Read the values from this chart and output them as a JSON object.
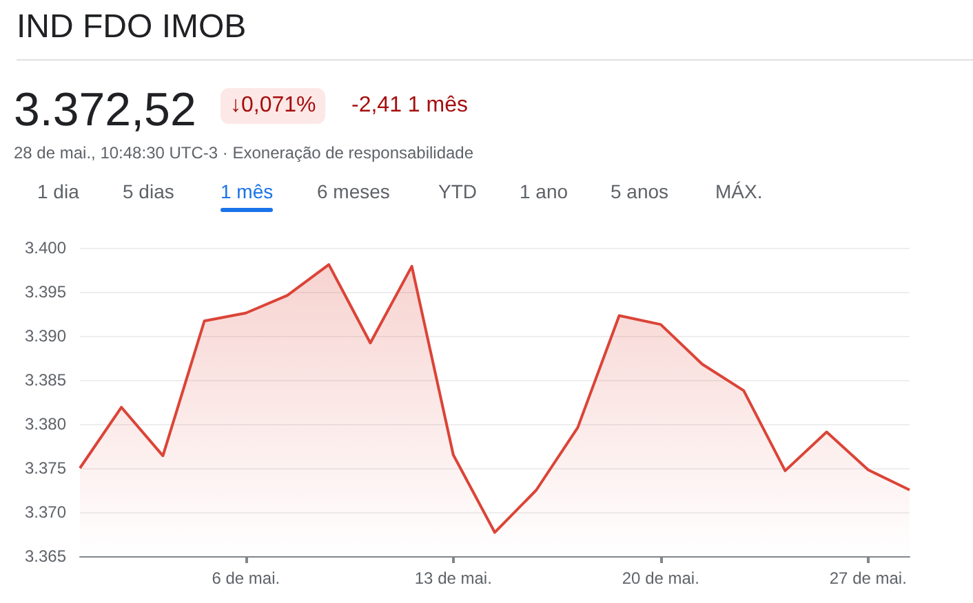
{
  "chart_data": {
    "type": "area",
    "title": "IND FDO IMOB",
    "annotations": [
      "3.372,52",
      "↓0,071%",
      "-2,41 1 mês",
      "28 de mai., 10:48:30 UTC-3 · Exoneração de responsabilidade",
      "1 dia",
      "5 dias",
      "1 mês",
      "6 meses",
      "YTD",
      "1 ano",
      "5 anos",
      "MÁX."
    ],
    "categories": [
      null,
      null,
      null,
      null,
      "6 de mai.",
      null,
      null,
      null,
      null,
      "13 de mai.",
      null,
      null,
      null,
      null,
      "20 de mai.",
      null,
      null,
      null,
      null,
      "27 de mai.",
      null
    ],
    "series": [
      {
        "color": "#db4437",
        "values": [
          3375,
          3381.9,
          3376.4,
          3391.7,
          3392.6,
          3394.6,
          3398.1,
          3389.2,
          3397.9,
          3376.5,
          3367.7,
          3372.5,
          3379.6,
          3392.3,
          3391.3,
          3386.8,
          3383.8,
          3374.7,
          3379.1,
          3374.8,
          3372.52
        ]
      }
    ],
    "ylim": [
      3365,
      3400
    ],
    "yticks": [
      {
        "value": 3365,
        "label": "3.365"
      },
      {
        "value": 3370,
        "label": "3.370"
      },
      {
        "value": 3375,
        "label": "3.375"
      },
      {
        "value": 3380,
        "label": "3.380"
      },
      {
        "value": 3385,
        "label": "3.385"
      },
      {
        "value": 3390,
        "label": "3.390"
      },
      {
        "value": 3395,
        "label": "3.395"
      },
      {
        "value": 3400,
        "label": "3.400"
      }
    ],
    "grid": "y",
    "marker": "none",
    "line_style": "solid"
  }
}
